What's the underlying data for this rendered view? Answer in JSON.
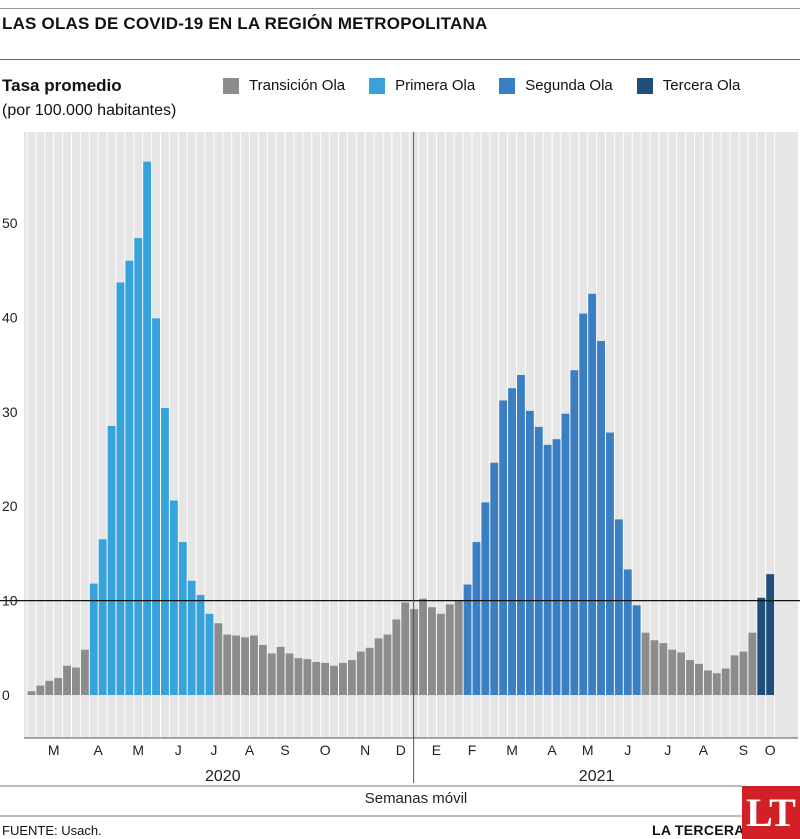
{
  "header": {
    "title": "LAS OLAS DE COVID-19 EN LA REGIÓN METROPOLITANA",
    "y_title": "Tasa promedio",
    "y_subtitle": "(por 100.000 habitantes)"
  },
  "legend": [
    {
      "label": "Transición Ola",
      "color": "#8c8c8c"
    },
    {
      "label": "Primera Ola",
      "color": "#36a3dc"
    },
    {
      "label": "Segunda Ola",
      "color": "#3a7fc4"
    },
    {
      "label": "Tercera Ola",
      "color": "#1f4e7a"
    }
  ],
  "footer": {
    "source": "FUENTE: Usach.",
    "brand": "LA TERCERA",
    "logo_text": "LT"
  },
  "chart_data": {
    "type": "bar",
    "xlabel": "Semanas móvil",
    "ylabel": "Tasa promedio",
    "ylim": [
      0,
      58
    ],
    "yticks": [
      0,
      10,
      20,
      30,
      40,
      50
    ],
    "reference_line": 10,
    "grid": true,
    "month_labels": [
      "M",
      "A",
      "M",
      "J",
      "J",
      "A",
      "S",
      "O",
      "N",
      "D",
      "E",
      "F",
      "M",
      "A",
      "M",
      "J",
      "J",
      "A",
      "S",
      "O"
    ],
    "month_start_index": [
      0,
      6,
      10,
      15,
      19,
      23,
      27,
      31,
      36,
      40,
      44,
      48,
      52,
      57,
      61,
      65,
      70,
      74,
      78,
      83
    ],
    "years": [
      {
        "label": "2020",
        "start_index": 0
      },
      {
        "label": "2021",
        "start_index": 44
      }
    ],
    "wave_colors": {
      "T": "#8c8c8c",
      "P": "#36a3dc",
      "S": "#3a7fc4",
      "R": "#1f4e7a"
    },
    "series": [
      {
        "values": [
          0.4,
          1.0,
          1.5,
          1.8,
          3.1,
          2.9,
          4.8,
          11.8,
          16.5,
          28.5,
          43.7,
          46.0,
          48.4,
          56.5,
          39.9,
          30.4,
          20.6,
          16.2,
          12.1,
          10.6,
          8.6,
          7.6,
          6.4,
          6.3,
          6.1,
          6.3,
          5.3,
          4.4,
          5.1,
          4.4,
          3.9,
          3.8,
          3.5,
          3.4,
          3.1,
          3.4,
          3.7,
          4.6,
          5.0,
          6.0,
          6.4,
          8.0,
          9.8,
          9.1,
          10.2,
          9.3,
          8.6,
          9.6,
          10.0,
          11.7,
          16.2,
          20.4,
          24.6,
          31.2,
          32.5,
          33.9,
          30.1,
          28.4,
          26.5,
          27.1,
          29.8,
          34.4,
          40.4,
          42.5,
          37.5,
          27.8,
          18.6,
          13.3,
          9.5,
          6.6,
          5.8,
          5.5,
          4.8,
          4.5,
          3.7,
          3.3,
          2.6,
          2.3,
          2.8,
          4.2,
          4.6,
          6.6,
          10.3,
          12.8
        ]
      },
      {
        "waves": "TTTTTTTPPPPPPPPPPPPPPTTTTTTTTTTTTTTTTTTTTTTTTTTTTSSSSSSSSSSSSSSSSSSSSTTTTTTTTTTTTTRR"
      }
    ]
  }
}
